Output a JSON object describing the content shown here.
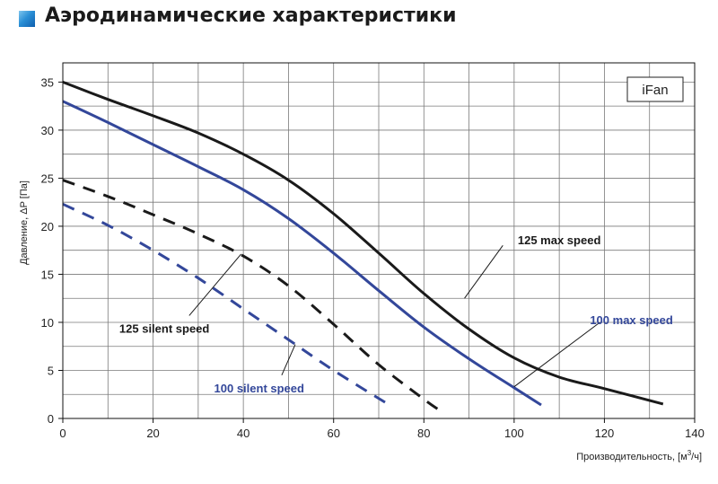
{
  "header": {
    "title": "Аэродинамические характеристики"
  },
  "chart_data": {
    "type": "line",
    "title": "Аэродинамические характеристики",
    "xlabel": "Производительность, [м³/ч]",
    "xlabel_base": "Производительность, [м",
    "xlabel_sup": "3",
    "xlabel_tail": "/ч]",
    "ylabel": "Давление, ΔP [Па]",
    "xlim": [
      0,
      140
    ],
    "ylim": [
      0,
      37
    ],
    "xticks": [
      0,
      20,
      40,
      60,
      80,
      100,
      120,
      140
    ],
    "yticks": [
      0,
      5,
      10,
      15,
      20,
      25,
      30,
      35
    ],
    "grid": true,
    "box_label": "iFan",
    "series": [
      {
        "name": "125 max speed",
        "color": "#1a1a1a",
        "dash": false,
        "x": [
          0,
          10,
          20,
          30,
          40,
          50,
          60,
          70,
          80,
          90,
          100,
          110,
          120,
          133
        ],
        "y": [
          35,
          33.2,
          31.5,
          29.7,
          27.5,
          24.8,
          21.3,
          17.2,
          13,
          9.3,
          6.3,
          4.3,
          3.1,
          1.5
        ]
      },
      {
        "name": "100 max speed",
        "color": "#33479a",
        "dash": false,
        "x": [
          0,
          10,
          20,
          30,
          40,
          50,
          60,
          70,
          80,
          90,
          100,
          106
        ],
        "y": [
          33,
          30.8,
          28.5,
          26.2,
          23.8,
          20.8,
          17.2,
          13.3,
          9.5,
          6.2,
          3.2,
          1.4
        ]
      },
      {
        "name": "125 silent speed",
        "color": "#1a1a1a",
        "dash": true,
        "x": [
          0,
          10,
          20,
          30,
          40,
          50,
          60,
          70,
          80,
          83
        ],
        "y": [
          24.8,
          23.1,
          21.2,
          19.2,
          16.9,
          13.8,
          9.8,
          5.6,
          2,
          1
        ]
      },
      {
        "name": "100 silent speed",
        "color": "#33479a",
        "dash": true,
        "x": [
          0,
          10,
          20,
          30,
          40,
          50,
          60,
          72
        ],
        "y": [
          22.3,
          20.1,
          17.5,
          14.6,
          11.4,
          8.2,
          5,
          1.5
        ]
      }
    ],
    "annotations": [
      {
        "text": "125 max speed",
        "color": "#1a1a1a",
        "label_at": [
          110,
          18.5
        ],
        "line_from": [
          97.5,
          18
        ],
        "line_to": [
          89,
          12.5
        ],
        "anchor": "middle"
      },
      {
        "text": "100 max speed",
        "color": "#33479a",
        "label_at": [
          126,
          10.2
        ],
        "line_from": [
          119,
          10
        ],
        "line_to": [
          100,
          3.3
        ],
        "anchor": "middle"
      },
      {
        "text": "125 silent speed",
        "color": "#1a1a1a",
        "label_at": [
          22.5,
          9.3
        ],
        "line_from": [
          28,
          10.7
        ],
        "line_to": [
          39.5,
          17.1
        ],
        "anchor": "middle"
      },
      {
        "text": "100 silent speed",
        "color": "#33479a",
        "label_at": [
          43.5,
          3.1
        ],
        "line_from": [
          48.5,
          4.5
        ],
        "line_to": [
          51.5,
          7.7
        ],
        "anchor": "middle"
      }
    ]
  }
}
